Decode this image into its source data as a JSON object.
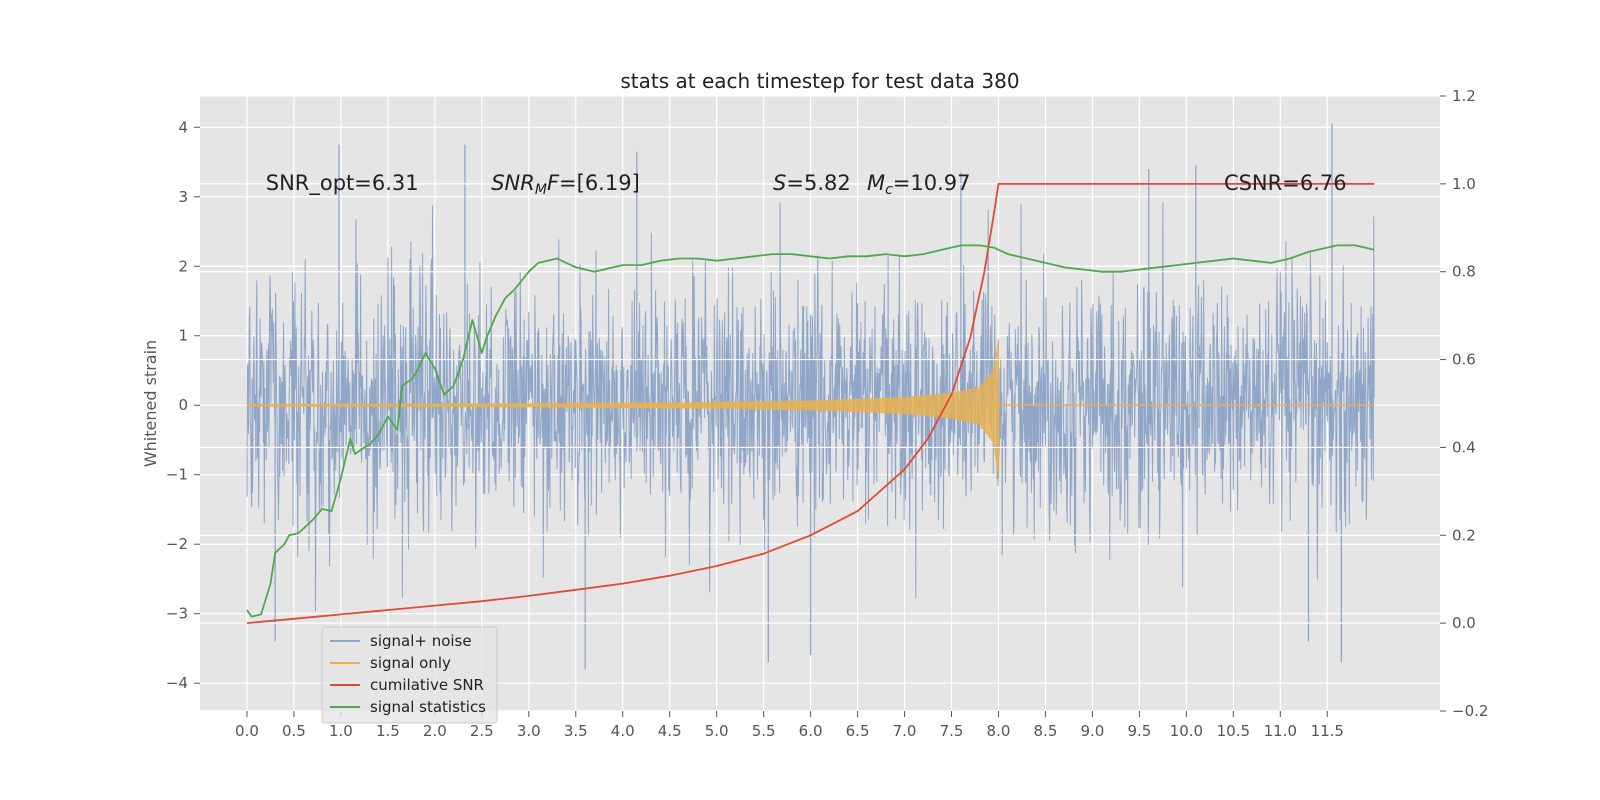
{
  "chart_data": {
    "type": "line",
    "title": "stats at each timestep for test data 380",
    "ylabel": "Whitened strain",
    "xlabel": "",
    "xlim": [
      -0.5,
      12.7
    ],
    "ylim": [
      -4.4,
      4.45
    ],
    "y2lim": [
      -0.2,
      1.2
    ],
    "xticks": [
      "0.0",
      "0.5",
      "1.0",
      "1.5",
      "2.0",
      "2.5",
      "3.0",
      "3.5",
      "4.0",
      "4.5",
      "5.0",
      "5.5",
      "6.0",
      "6.5",
      "7.0",
      "7.5",
      "8.0",
      "8.5",
      "9.0",
      "9.5",
      "10.0",
      "10.5",
      "11.0",
      "11.5"
    ],
    "yticks": [
      "4",
      "3",
      "2",
      "1",
      "0",
      "−1",
      "−2",
      "−3",
      "−4"
    ],
    "y2ticks": [
      "1.2",
      "1.0",
      "0.8",
      "0.6",
      "0.4",
      "0.2",
      "0.0",
      "−0.2"
    ],
    "grid": true,
    "legend_position": "lower-left",
    "annotations": [
      {
        "parts": [
          {
            "t": "SNR_opt=6.31"
          }
        ],
        "x": 0.2,
        "y": 3.2
      },
      {
        "parts": [
          {
            "t": "SNR",
            "i": true
          },
          {
            "t": "M",
            "i": true,
            "sub": true
          },
          {
            "t": "F",
            "i": true
          },
          {
            "t": "=[6.19]"
          }
        ],
        "x": 2.6,
        "y": 3.2
      },
      {
        "parts": [
          {
            "t": "S",
            "i": true
          },
          {
            "t": "=5.82"
          }
        ],
        "x": 5.6,
        "y": 3.2
      },
      {
        "parts": [
          {
            "t": "M",
            "i": true
          },
          {
            "t": "c",
            "i": true,
            "sub": true
          },
          {
            "t": "=10.97"
          }
        ],
        "x": 6.6,
        "y": 3.2
      },
      {
        "parts": [
          {
            "t": "CSNR=6.76"
          }
        ],
        "x": 10.4,
        "y": 3.2
      }
    ],
    "series": [
      {
        "name": "signal+ noise",
        "color": "#8fa6c8",
        "axis": "left",
        "kind": "noise",
        "x_range": [
          0.0,
          12.0
        ],
        "envelope": {
          "typical_max": 2.3,
          "typical_min": -2.1,
          "peak_max": 4.05,
          "peak_min": -3.8
        },
        "spikes": [
          {
            "x": 0.98,
            "y": 3.75
          },
          {
            "x": 2.32,
            "y": 3.75
          },
          {
            "x": 4.15,
            "y": 3.65
          },
          {
            "x": 5.55,
            "y": -3.7
          },
          {
            "x": 6.0,
            "y": 1.3
          },
          {
            "x": 6.0,
            "y": -3.6
          },
          {
            "x": 7.6,
            "y": 3.35
          },
          {
            "x": 10.1,
            "y": 3.45
          },
          {
            "x": 11.55,
            "y": 4.05
          },
          {
            "x": 11.65,
            "y": -3.7
          },
          {
            "x": 3.6,
            "y": -3.8
          },
          {
            "x": 11.3,
            "y": -3.4
          },
          {
            "x": 0.3,
            "y": -3.4
          },
          {
            "x": 9.6,
            "y": 3.4
          }
        ]
      },
      {
        "name": "signal only",
        "color": "#e8b14f",
        "axis": "left",
        "kind": "chirp",
        "x_range": [
          0.0,
          12.0
        ],
        "merger_x": 8.0,
        "envelope_points": [
          [
            0.0,
            0.01
          ],
          [
            3.0,
            0.02
          ],
          [
            5.0,
            0.04
          ],
          [
            6.0,
            0.06
          ],
          [
            7.0,
            0.11
          ],
          [
            7.5,
            0.17
          ],
          [
            7.8,
            0.25
          ],
          [
            7.95,
            0.5
          ],
          [
            8.0,
            0.95
          ]
        ],
        "min_tail": -1.05
      },
      {
        "name": "cumilative SNR",
        "color": "#e24a33",
        "axis": "right",
        "x": [
          0.0,
          0.5,
          1.0,
          1.5,
          2.0,
          2.5,
          3.0,
          3.5,
          4.0,
          4.5,
          5.0,
          5.5,
          6.0,
          6.5,
          7.0,
          7.25,
          7.5,
          7.7,
          7.85,
          7.95,
          8.0,
          9.0,
          10.0,
          11.0,
          12.0
        ],
        "y": [
          0.0,
          0.01,
          0.02,
          0.03,
          0.04,
          0.05,
          0.062,
          0.076,
          0.09,
          0.108,
          0.13,
          0.158,
          0.2,
          0.255,
          0.35,
          0.42,
          0.52,
          0.65,
          0.8,
          0.93,
          1.0,
          1.0,
          1.0,
          1.0,
          1.0
        ]
      },
      {
        "name": "signal statistics",
        "color": "#4fa84a",
        "axis": "right",
        "x": [
          0.0,
          0.05,
          0.15,
          0.25,
          0.3,
          0.4,
          0.45,
          0.55,
          0.6,
          0.7,
          0.8,
          0.9,
          1.0,
          1.1,
          1.15,
          1.25,
          1.3,
          1.4,
          1.5,
          1.6,
          1.65,
          1.75,
          1.8,
          1.9,
          2.0,
          2.1,
          2.2,
          2.3,
          2.4,
          2.5,
          2.55,
          2.65,
          2.75,
          2.85,
          3.0,
          3.1,
          3.2,
          3.3,
          3.4,
          3.5,
          3.7,
          3.9,
          4.0,
          4.2,
          4.4,
          4.6,
          4.8,
          5.0,
          5.2,
          5.4,
          5.6,
          5.8,
          6.0,
          6.2,
          6.4,
          6.6,
          6.8,
          7.0,
          7.2,
          7.4,
          7.6,
          7.8,
          7.95,
          8.1,
          8.3,
          8.5,
          8.7,
          8.9,
          9.1,
          9.3,
          9.5,
          9.7,
          9.9,
          10.1,
          10.3,
          10.5,
          10.7,
          10.9,
          11.1,
          11.3,
          11.5,
          11.6,
          11.8,
          12.0
        ],
        "y": [
          0.03,
          0.015,
          0.02,
          0.09,
          0.16,
          0.18,
          0.2,
          0.205,
          0.215,
          0.235,
          0.26,
          0.255,
          0.33,
          0.42,
          0.385,
          0.4,
          0.405,
          0.43,
          0.47,
          0.44,
          0.54,
          0.555,
          0.57,
          0.615,
          0.58,
          0.52,
          0.54,
          0.6,
          0.69,
          0.615,
          0.65,
          0.7,
          0.74,
          0.76,
          0.8,
          0.82,
          0.825,
          0.83,
          0.82,
          0.81,
          0.8,
          0.81,
          0.815,
          0.815,
          0.825,
          0.83,
          0.83,
          0.825,
          0.83,
          0.835,
          0.84,
          0.84,
          0.835,
          0.83,
          0.835,
          0.835,
          0.84,
          0.835,
          0.84,
          0.85,
          0.86,
          0.86,
          0.855,
          0.84,
          0.83,
          0.82,
          0.81,
          0.805,
          0.8,
          0.8,
          0.805,
          0.81,
          0.815,
          0.82,
          0.825,
          0.83,
          0.825,
          0.82,
          0.83,
          0.845,
          0.855,
          0.86,
          0.86,
          0.85
        ]
      }
    ]
  }
}
